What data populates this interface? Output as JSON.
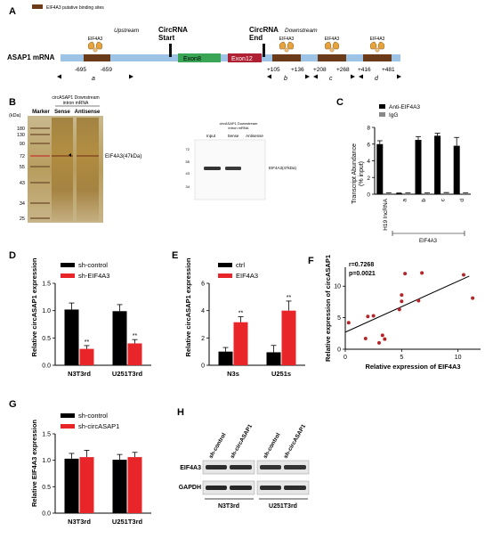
{
  "panels": {
    "A": {
      "letter": "A",
      "legend_label": "EIF4A3 putative binding sites",
      "mrna_label": "ASAP1 mRNA",
      "upstream": "Upstream",
      "downstream": "Downstream",
      "circ_start_1": "CircRNA",
      "circ_start_2": "Start",
      "circ_end_1": "CircRNA",
      "circ_end_2": "End",
      "exon8": "Exon8",
      "exon12": "Exon12",
      "protein": "EIF4A3",
      "sites": [
        {
          "start": "-695",
          "end": "-659",
          "letter": "a"
        },
        {
          "start": "+105",
          "end": "+136",
          "letter": "b"
        },
        {
          "start": "+208",
          "end": "+268",
          "letter": "c"
        },
        {
          "start": "+416",
          "end": "+481",
          "letter": "d"
        }
      ]
    },
    "B": {
      "letter": "B",
      "kda": "(kDa)",
      "marker": "Marker",
      "probe_header_1": "circASAP1 Downstream",
      "probe_header_2": "intron mRNA",
      "sense": "Sense",
      "antisense": "Antisense",
      "band_label": "EIF4A3(47kDa)",
      "mw": [
        "180",
        "130",
        "90",
        "72",
        "55",
        "43",
        "34",
        "25"
      ],
      "wb_header_1": "circASAP1 Downstream",
      "wb_header_2": "intron mRNA",
      "wb_lanes": [
        "Input",
        "Sense",
        "Antisense"
      ],
      "wb_mw": [
        "72",
        "55",
        "43",
        "34"
      ],
      "wb_band_label": "EIF4A3(47kDa)"
    },
    "C": {
      "letter": "C",
      "ylabel": "Transcript Abundance\n(% input)",
      "group_label": "EIF4A3"
    },
    "D": {
      "letter": "D",
      "ylabel": "Relative circASAP1 expression"
    },
    "E": {
      "letter": "E",
      "ylabel": "Relative circASAP1 expression"
    },
    "F": {
      "letter": "F",
      "r_text": "r=0.7268",
      "p_text": "p=0.0021"
    },
    "G": {
      "letter": "G",
      "ylabel": "Relative EIF4A3 expression"
    },
    "H": {
      "letter": "H",
      "lanes": [
        "sh-control",
        "sh-circASAP1",
        "sh-control",
        "sh-circASAP1"
      ],
      "rows": [
        "EIF4A3",
        "GAPDH"
      ],
      "cells": [
        "N3T3rd",
        "U251T3rd"
      ]
    }
  },
  "chart_data": [
    {
      "id": "C",
      "type": "bar",
      "categories": [
        "H19 lncRNA",
        "a",
        "b",
        "c",
        "d"
      ],
      "series": [
        {
          "name": "Anti-EIF4A3",
          "values": [
            6.0,
            0.1,
            6.5,
            7.0,
            5.8
          ],
          "errors": [
            0.4,
            0.05,
            0.4,
            0.3,
            1.0
          ],
          "color": "#000000"
        },
        {
          "name": "IgG",
          "values": [
            0.1,
            0.1,
            0.1,
            0.15,
            0.1
          ],
          "errors": [
            0.05,
            0.05,
            0.05,
            0.05,
            0.05
          ],
          "color": "#888888"
        }
      ],
      "ylim": [
        0,
        8
      ],
      "yticks": [
        0,
        2,
        4,
        6,
        8
      ],
      "legend": "top-left"
    },
    {
      "id": "D",
      "type": "bar",
      "categories": [
        "N3T3rd",
        "U251T3rd"
      ],
      "series": [
        {
          "name": "sh-control",
          "values": [
            1.02,
            0.99
          ],
          "errors": [
            0.12,
            0.12
          ],
          "color": "#000000"
        },
        {
          "name": "sh-EIF4A3",
          "values": [
            0.3,
            0.4
          ],
          "errors": [
            0.06,
            0.07
          ],
          "color": "#e8262a"
        }
      ],
      "sig": [
        "**",
        "**"
      ],
      "ylim": [
        0,
        1.5
      ],
      "yticks": [
        0.0,
        0.5,
        1.0,
        1.5
      ],
      "legend": "top"
    },
    {
      "id": "E",
      "type": "bar",
      "categories": [
        "N3s",
        "U251s"
      ],
      "series": [
        {
          "name": "ctrl",
          "values": [
            1.0,
            0.95
          ],
          "errors": [
            0.3,
            0.5
          ],
          "color": "#000000"
        },
        {
          "name": "EIF4A3",
          "values": [
            3.15,
            4.0
          ],
          "errors": [
            0.4,
            0.7
          ],
          "color": "#e8262a"
        }
      ],
      "sig": [
        "**",
        "**"
      ],
      "ylim": [
        0,
        6
      ],
      "yticks": [
        0,
        2,
        4,
        6
      ],
      "legend": "top"
    },
    {
      "id": "F",
      "type": "scatter",
      "xlabel": "Relative expression of EIF4A3",
      "ylabel": "Relative expression of circASAP1",
      "points": [
        [
          0.3,
          4.2
        ],
        [
          1.8,
          1.7
        ],
        [
          2.0,
          5.2
        ],
        [
          2.5,
          5.3
        ],
        [
          3.0,
          1.0
        ],
        [
          3.3,
          2.2
        ],
        [
          3.5,
          1.6
        ],
        [
          4.8,
          6.3
        ],
        [
          5.0,
          8.6
        ],
        [
          5.0,
          7.6
        ],
        [
          5.3,
          12.0
        ],
        [
          6.5,
          7.7
        ],
        [
          6.8,
          12.1
        ],
        [
          10.5,
          11.8
        ],
        [
          11.3,
          8.1
        ]
      ],
      "fit": [
        [
          0.0,
          2.7
        ],
        [
          11.0,
          11.6
        ]
      ],
      "xlim": [
        0,
        12
      ],
      "ylim": [
        0,
        13
      ],
      "xticks": [
        0,
        5,
        10
      ],
      "yticks": [
        0,
        5,
        10
      ]
    },
    {
      "id": "G",
      "type": "bar",
      "categories": [
        "N3T3rd",
        "U251T3rd"
      ],
      "series": [
        {
          "name": "sh-control",
          "values": [
            1.03,
            1.01
          ],
          "errors": [
            0.1,
            0.1
          ],
          "color": "#000000"
        },
        {
          "name": "sh-circASAP1",
          "values": [
            1.06,
            1.06
          ],
          "errors": [
            0.13,
            0.09
          ],
          "color": "#e8262a"
        }
      ],
      "ylim": [
        0,
        1.5
      ],
      "yticks": [
        0.0,
        0.5,
        1.0,
        1.5
      ],
      "legend": "top"
    }
  ]
}
